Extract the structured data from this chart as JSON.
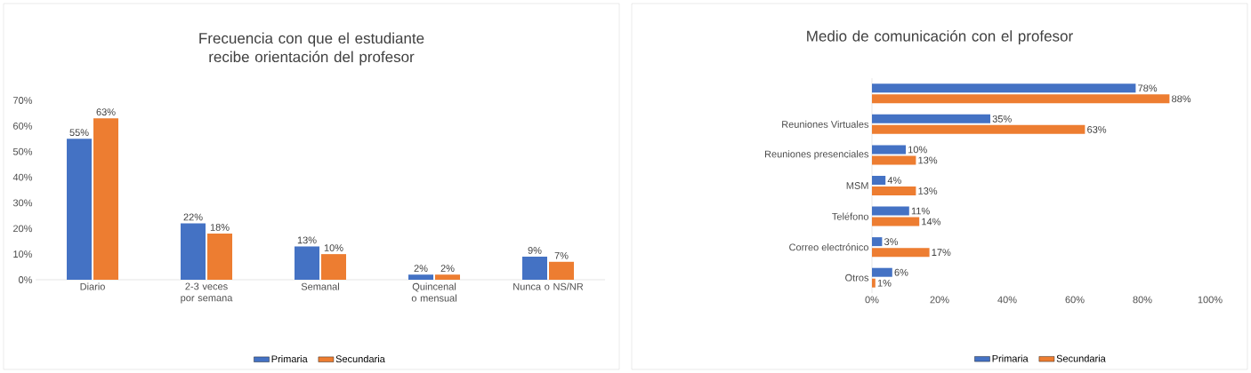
{
  "chart_data": [
    {
      "type": "bar",
      "title": "Frecuencia con que el estudiante recibe orientación del profesor",
      "categories": [
        "Diario",
        "2-3 veces por semana",
        "Semanal",
        "Quincenal o mensual",
        "Nunca o NS/NR"
      ],
      "series": [
        {
          "name": "Primaria",
          "color": "#4472c4",
          "values": [
            55,
            22,
            13,
            2,
            9
          ],
          "value_labels": [
            "55%",
            "22%",
            "13%",
            "2%",
            "9%"
          ]
        },
        {
          "name": "Secundaria",
          "color": "#ed7d31",
          "values": [
            63,
            18,
            10,
            2,
            7
          ],
          "value_labels": [
            "63%",
            "18%",
            "10%",
            "2%",
            "7%"
          ]
        }
      ],
      "ylim": [
        0,
        70
      ],
      "yticks": [
        {
          "value": 0,
          "label": "0%"
        },
        {
          "value": 10,
          "label": "10%"
        },
        {
          "value": 20,
          "label": "20%"
        },
        {
          "value": 30,
          "label": "30%"
        },
        {
          "value": 40,
          "label": "40%"
        },
        {
          "value": 50,
          "label": "50%"
        },
        {
          "value": 60,
          "label": "60%"
        },
        {
          "value": 70,
          "label": "70%"
        }
      ],
      "legend": "bottom"
    },
    {
      "type": "bar",
      "orientation": "horizontal",
      "title": "Medio de comunicación con el profesor",
      "categories": [
        null,
        "Reuniones Virtuales",
        "Reuniones presenciales",
        "MSM",
        "Teléfono",
        "Correo electrónico",
        "Otros"
      ],
      "series": [
        {
          "name": "Primaria",
          "color": "#4472c4",
          "values": [
            78,
            35,
            10,
            4,
            11,
            3,
            6
          ],
          "value_labels": [
            "78%",
            "35%",
            "10%",
            "4%",
            "11%",
            "3%",
            "6%"
          ]
        },
        {
          "name": "Secundaria",
          "color": "#ed7d31",
          "values": [
            88,
            63,
            13,
            13,
            14,
            17,
            1
          ],
          "value_labels": [
            "88%",
            "63%",
            "13%",
            "13%",
            "14%",
            "17%",
            "1%"
          ]
        }
      ],
      "xlim": [
        0,
        100
      ],
      "xticks": [
        {
          "value": 0,
          "label": "0%"
        },
        {
          "value": 20,
          "label": "20%"
        },
        {
          "value": 40,
          "label": "40%"
        },
        {
          "value": 60,
          "label": "60%"
        },
        {
          "value": 80,
          "label": "80%"
        },
        {
          "value": 100,
          "label": "100%"
        }
      ],
      "legend": "bottom"
    }
  ]
}
